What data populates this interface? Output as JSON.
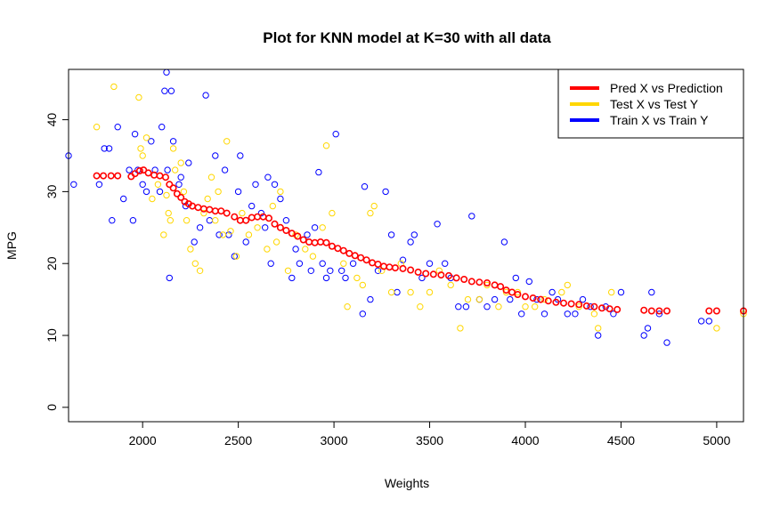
{
  "chart_data": {
    "type": "scatter",
    "title": "Plot for KNN model at K=30 with all data",
    "xlabel": "Weights",
    "ylabel": "MPG",
    "xlim": [
      1613,
      5140
    ],
    "ylim": [
      -2,
      47
    ],
    "x_ticks": [
      2000,
      2500,
      3000,
      3500,
      4000,
      4500,
      5000
    ],
    "y_ticks": [
      0,
      10,
      20,
      30,
      40
    ],
    "legend_position": "top-right",
    "series": [
      {
        "name": "Pred X vs Prediction",
        "color": "#ff0000",
        "points": [
          [
            1760,
            32.2
          ],
          [
            1795,
            32.2
          ],
          [
            1835,
            32.2
          ],
          [
            1870,
            32.2
          ],
          [
            1940,
            32.1
          ],
          [
            1960,
            32.5
          ],
          [
            1985,
            32.9
          ],
          [
            2005,
            33.0
          ],
          [
            2030,
            32.6
          ],
          [
            2060,
            32.3
          ],
          [
            2090,
            32.2
          ],
          [
            2120,
            32.0
          ],
          [
            2140,
            31.0
          ],
          [
            2160,
            30.5
          ],
          [
            2180,
            29.7
          ],
          [
            2200,
            29.2
          ],
          [
            2220,
            28.6
          ],
          [
            2240,
            28.3
          ],
          [
            2260,
            28.0
          ],
          [
            2290,
            27.8
          ],
          [
            2320,
            27.6
          ],
          [
            2350,
            27.5
          ],
          [
            2380,
            27.3
          ],
          [
            2410,
            27.3
          ],
          [
            2440,
            27.0
          ],
          [
            2480,
            26.5
          ],
          [
            2510,
            26.0
          ],
          [
            2540,
            26.0
          ],
          [
            2570,
            26.4
          ],
          [
            2600,
            26.5
          ],
          [
            2630,
            26.5
          ],
          [
            2660,
            26.3
          ],
          [
            2690,
            25.5
          ],
          [
            2720,
            25.0
          ],
          [
            2750,
            24.6
          ],
          [
            2780,
            24.2
          ],
          [
            2810,
            23.8
          ],
          [
            2840,
            23.3
          ],
          [
            2870,
            23.0
          ],
          [
            2900,
            22.9
          ],
          [
            2930,
            23.0
          ],
          [
            2960,
            22.9
          ],
          [
            2990,
            22.4
          ],
          [
            3020,
            22.1
          ],
          [
            3050,
            21.8
          ],
          [
            3080,
            21.4
          ],
          [
            3110,
            21.1
          ],
          [
            3140,
            20.8
          ],
          [
            3170,
            20.5
          ],
          [
            3200,
            20.1
          ],
          [
            3230,
            19.9
          ],
          [
            3260,
            19.6
          ],
          [
            3290,
            19.5
          ],
          [
            3320,
            19.4
          ],
          [
            3360,
            19.3
          ],
          [
            3400,
            19.1
          ],
          [
            3440,
            18.8
          ],
          [
            3480,
            18.6
          ],
          [
            3520,
            18.5
          ],
          [
            3560,
            18.4
          ],
          [
            3600,
            18.3
          ],
          [
            3640,
            18.0
          ],
          [
            3680,
            17.8
          ],
          [
            3720,
            17.5
          ],
          [
            3760,
            17.4
          ],
          [
            3800,
            17.3
          ],
          [
            3840,
            17.0
          ],
          [
            3870,
            16.8
          ],
          [
            3900,
            16.3
          ],
          [
            3930,
            16.0
          ],
          [
            3960,
            15.7
          ],
          [
            4000,
            15.4
          ],
          [
            4040,
            15.2
          ],
          [
            4080,
            15.0
          ],
          [
            4120,
            14.8
          ],
          [
            4160,
            14.6
          ],
          [
            4200,
            14.5
          ],
          [
            4240,
            14.4
          ],
          [
            4280,
            14.3
          ],
          [
            4320,
            14.1
          ],
          [
            4360,
            14.0
          ],
          [
            4400,
            13.8
          ],
          [
            4440,
            13.7
          ],
          [
            4480,
            13.6
          ],
          [
            4620,
            13.5
          ],
          [
            4660,
            13.4
          ],
          [
            4700,
            13.4
          ],
          [
            4740,
            13.4
          ],
          [
            4960,
            13.4
          ],
          [
            5000,
            13.4
          ],
          [
            5140,
            13.4
          ]
        ]
      },
      {
        "name": "Test X vs Test Y",
        "color": "#ffd700",
        "points": [
          [
            1760,
            39
          ],
          [
            1850,
            44.6
          ],
          [
            1980,
            43.1
          ],
          [
            1990,
            36
          ],
          [
            2000,
            35
          ],
          [
            2020,
            37.5
          ],
          [
            2050,
            29
          ],
          [
            2080,
            31
          ],
          [
            2110,
            24
          ],
          [
            2125,
            29.5
          ],
          [
            2135,
            27
          ],
          [
            2145,
            26
          ],
          [
            2160,
            36
          ],
          [
            2170,
            33
          ],
          [
            2200,
            34
          ],
          [
            2215,
            30
          ],
          [
            2230,
            26
          ],
          [
            2250,
            22
          ],
          [
            2275,
            20
          ],
          [
            2300,
            19
          ],
          [
            2320,
            27
          ],
          [
            2340,
            29
          ],
          [
            2360,
            32
          ],
          [
            2380,
            26
          ],
          [
            2395,
            30
          ],
          [
            2420,
            24
          ],
          [
            2440,
            37
          ],
          [
            2460,
            24.5
          ],
          [
            2490,
            21
          ],
          [
            2520,
            27
          ],
          [
            2555,
            24
          ],
          [
            2600,
            25
          ],
          [
            2650,
            22
          ],
          [
            2680,
            28
          ],
          [
            2700,
            23
          ],
          [
            2720,
            30
          ],
          [
            2760,
            19
          ],
          [
            2800,
            24
          ],
          [
            2850,
            22
          ],
          [
            2890,
            21
          ],
          [
            2940,
            25
          ],
          [
            2960,
            36.4
          ],
          [
            2990,
            27
          ],
          [
            3050,
            20
          ],
          [
            3070,
            14
          ],
          [
            3120,
            18
          ],
          [
            3150,
            17
          ],
          [
            3190,
            27
          ],
          [
            3210,
            28
          ],
          [
            3250,
            19
          ],
          [
            3300,
            16
          ],
          [
            3350,
            20
          ],
          [
            3400,
            16
          ],
          [
            3450,
            14
          ],
          [
            3500,
            16
          ],
          [
            3550,
            19
          ],
          [
            3610,
            17
          ],
          [
            3660,
            11
          ],
          [
            3700,
            15
          ],
          [
            3760,
            15
          ],
          [
            3800,
            17
          ],
          [
            3860,
            14
          ],
          [
            3900,
            16
          ],
          [
            3960,
            16
          ],
          [
            4000,
            14
          ],
          [
            4050,
            14
          ],
          [
            4100,
            15
          ],
          [
            4190,
            16
          ],
          [
            4220,
            17
          ],
          [
            4280,
            14
          ],
          [
            4360,
            13
          ],
          [
            4380,
            11
          ],
          [
            4450,
            16
          ],
          [
            5000,
            11
          ],
          [
            5140,
            13
          ]
        ]
      },
      {
        "name": "Train X vs Train Y",
        "color": "#0000ff",
        "points": [
          [
            1613,
            35
          ],
          [
            1640,
            31
          ],
          [
            1773,
            31
          ],
          [
            1800,
            36
          ],
          [
            1825,
            36
          ],
          [
            1840,
            26
          ],
          [
            1870,
            39
          ],
          [
            1900,
            29
          ],
          [
            1930,
            33
          ],
          [
            1950,
            26
          ],
          [
            1960,
            38
          ],
          [
            1975,
            33
          ],
          [
            2000,
            31
          ],
          [
            2020,
            30
          ],
          [
            2045,
            37
          ],
          [
            2065,
            33
          ],
          [
            2090,
            30
          ],
          [
            2100,
            39
          ],
          [
            2115,
            44
          ],
          [
            2125,
            46.6
          ],
          [
            2130,
            33
          ],
          [
            2140,
            18
          ],
          [
            2150,
            44
          ],
          [
            2160,
            37
          ],
          [
            2190,
            31
          ],
          [
            2200,
            32
          ],
          [
            2225,
            28
          ],
          [
            2240,
            34
          ],
          [
            2270,
            23
          ],
          [
            2300,
            25
          ],
          [
            2330,
            43.4
          ],
          [
            2350,
            26
          ],
          [
            2380,
            35
          ],
          [
            2400,
            24
          ],
          [
            2430,
            33
          ],
          [
            2450,
            24
          ],
          [
            2480,
            21
          ],
          [
            2500,
            30
          ],
          [
            2510,
            35
          ],
          [
            2540,
            23
          ],
          [
            2570,
            28
          ],
          [
            2590,
            31
          ],
          [
            2620,
            27
          ],
          [
            2640,
            25
          ],
          [
            2655,
            32
          ],
          [
            2670,
            20
          ],
          [
            2690,
            31
          ],
          [
            2720,
            29
          ],
          [
            2750,
            26
          ],
          [
            2780,
            18
          ],
          [
            2800,
            22
          ],
          [
            2820,
            20
          ],
          [
            2860,
            24
          ],
          [
            2880,
            19
          ],
          [
            2900,
            25
          ],
          [
            2920,
            32.7
          ],
          [
            2940,
            20
          ],
          [
            2960,
            18
          ],
          [
            2980,
            19
          ],
          [
            3010,
            38
          ],
          [
            3040,
            19
          ],
          [
            3060,
            18
          ],
          [
            3100,
            20
          ],
          [
            3150,
            13
          ],
          [
            3160,
            30.7
          ],
          [
            3190,
            15
          ],
          [
            3230,
            19
          ],
          [
            3270,
            30
          ],
          [
            3300,
            24
          ],
          [
            3330,
            16
          ],
          [
            3360,
            20.5
          ],
          [
            3400,
            23
          ],
          [
            3420,
            24
          ],
          [
            3460,
            18
          ],
          [
            3500,
            20
          ],
          [
            3540,
            25.5
          ],
          [
            3580,
            20
          ],
          [
            3610,
            18
          ],
          [
            3650,
            14
          ],
          [
            3690,
            14
          ],
          [
            3720,
            26.6
          ],
          [
            3760,
            15
          ],
          [
            3800,
            14
          ],
          [
            3840,
            15
          ],
          [
            3890,
            23
          ],
          [
            3920,
            15
          ],
          [
            3950,
            18
          ],
          [
            3980,
            13
          ],
          [
            4020,
            17.5
          ],
          [
            4060,
            15
          ],
          [
            4100,
            13
          ],
          [
            4140,
            16
          ],
          [
            4170,
            15
          ],
          [
            4220,
            13
          ],
          [
            4260,
            13
          ],
          [
            4300,
            15
          ],
          [
            4340,
            14
          ],
          [
            4380,
            10
          ],
          [
            4420,
            14
          ],
          [
            4460,
            13
          ],
          [
            4500,
            16
          ],
          [
            4620,
            10
          ],
          [
            4640,
            11
          ],
          [
            4660,
            16
          ],
          [
            4700,
            13
          ],
          [
            4740,
            9
          ],
          [
            4920,
            12
          ],
          [
            4960,
            12
          ]
        ]
      }
    ]
  }
}
